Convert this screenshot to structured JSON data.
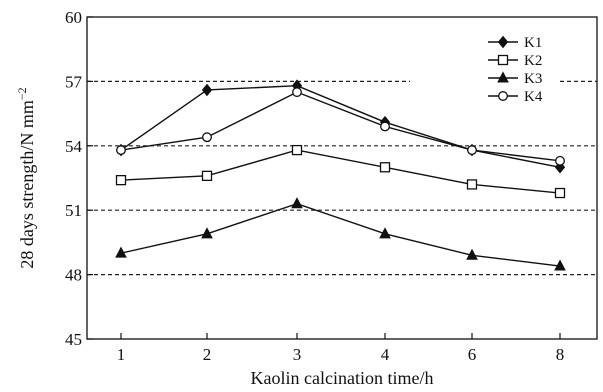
{
  "chart_data": {
    "type": "line",
    "categories": [
      "1",
      "2",
      "3",
      "4",
      "6",
      "8"
    ],
    "series": [
      {
        "name": "K1",
        "marker": "diamond-filled",
        "values": [
          53.8,
          56.6,
          56.8,
          55.1,
          53.8,
          53.0
        ]
      },
      {
        "name": "K2",
        "marker": "square-open",
        "values": [
          52.4,
          52.6,
          53.8,
          53.0,
          52.2,
          51.8
        ]
      },
      {
        "name": "K3",
        "marker": "triangle-filled",
        "values": [
          49.0,
          49.9,
          51.3,
          49.9,
          48.9,
          48.4
        ]
      },
      {
        "name": "K4",
        "marker": "circle-open",
        "values": [
          53.8,
          54.4,
          56.5,
          54.9,
          53.8,
          53.3
        ]
      }
    ],
    "xlabel": "Kaolin calcination time/h",
    "ylabel": "28 days strength/N mm",
    "ylabel_superscript": "−2",
    "ylim": [
      45,
      60
    ],
    "yticks": [
      45,
      48,
      51,
      54,
      57,
      60
    ],
    "grid": {
      "horizontal_dashed": [
        48,
        51,
        54,
        57
      ]
    },
    "legend": "top-right",
    "colors": {
      "line": "#111111",
      "grid": "#222222",
      "background": "#ffffff"
    }
  }
}
